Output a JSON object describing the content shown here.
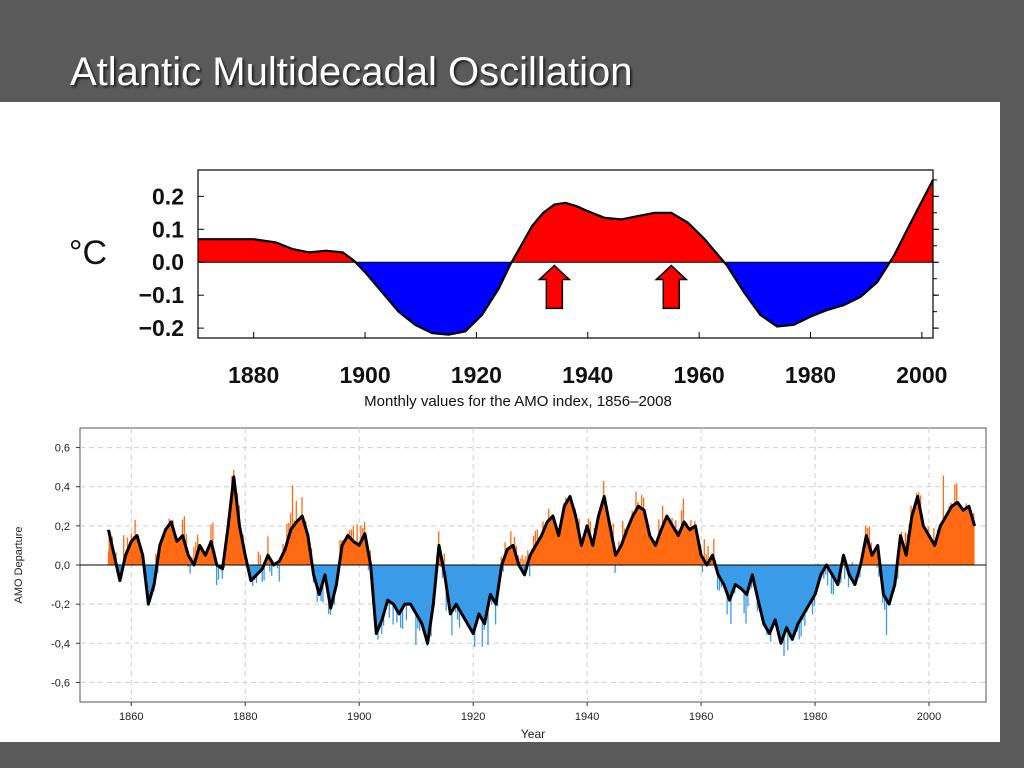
{
  "slide": {
    "title": "Atlantic Multidecadal Oscillation"
  },
  "colors": {
    "positive_top": "#ff0000",
    "negative_top": "#0000ff",
    "positive_bottom": "#ff6a13",
    "negative_bottom": "#3a9be8",
    "smooth_line": "#000000",
    "arrow_fill": "#ff0000"
  },
  "chart_data": [
    {
      "type": "area",
      "title": "",
      "ylabel": "°C",
      "xlim": [
        1870,
        2002
      ],
      "ylim": [
        -0.23,
        0.28
      ],
      "y_ticks": [
        0.2,
        0.1,
        0.0,
        -0.1,
        -0.2
      ],
      "y_tick_labels": [
        "0.2",
        "0.1",
        "0.0",
        "−0.1",
        "−0.2"
      ],
      "x_ticks": [
        1880,
        1900,
        1920,
        1940,
        1960,
        1980,
        2000
      ],
      "x_tick_labels": [
        "1880",
        "1900",
        "1920",
        "1940",
        "1960",
        "1980",
        "2000"
      ],
      "series": [
        {
          "x": [
            1870,
            1875,
            1880,
            1884,
            1887,
            1890,
            1893,
            1896,
            1898,
            1900,
            1903,
            1906,
            1909,
            1912,
            1915,
            1918,
            1921,
            1924,
            1926,
            1928,
            1930,
            1932,
            1934,
            1936,
            1938,
            1940,
            1943,
            1946,
            1949,
            1952,
            1955,
            1958,
            1961,
            1963,
            1965,
            1968,
            1971,
            1974,
            1977,
            1980,
            1983,
            1986,
            1989,
            1992,
            1995,
            1998,
            2002
          ],
          "y": [
            0.07,
            0.07,
            0.07,
            0.06,
            0.04,
            0.03,
            0.035,
            0.03,
            0.005,
            -0.03,
            -0.09,
            -0.15,
            -0.19,
            -0.215,
            -0.22,
            -0.21,
            -0.16,
            -0.08,
            -0.01,
            0.05,
            0.11,
            0.15,
            0.175,
            0.18,
            0.17,
            0.155,
            0.135,
            0.13,
            0.14,
            0.15,
            0.15,
            0.12,
            0.07,
            0.03,
            -0.01,
            -0.09,
            -0.16,
            -0.195,
            -0.19,
            -0.165,
            -0.145,
            -0.13,
            -0.105,
            -0.06,
            0.02,
            0.12,
            0.25
          ]
        }
      ],
      "annotations": [
        {
          "type": "arrow-up",
          "x": 1934,
          "y_from": -0.14,
          "y_to": -0.01
        },
        {
          "type": "arrow-up",
          "x": 1955,
          "y_from": -0.14,
          "y_to": -0.01
        }
      ],
      "caption": "Monthly values for the AMO index, 1856–2008"
    },
    {
      "type": "bar",
      "title": "",
      "xlabel": "Year",
      "ylabel": "AMO Departure",
      "xlim": [
        1851,
        2010
      ],
      "ylim": [
        -0.7,
        0.7
      ],
      "y_ticks": [
        0.6,
        0.4,
        0.2,
        0.0,
        -0.2,
        -0.4,
        -0.6
      ],
      "y_tick_labels": [
        "0,6",
        "0,4",
        "0,2",
        "0,0",
        "-0,2",
        "-0,4",
        "-0,6"
      ],
      "x_ticks": [
        1860,
        1880,
        1900,
        1920,
        1940,
        1960,
        1980,
        2000
      ],
      "x_tick_labels": [
        "1860",
        "1880",
        "1900",
        "1920",
        "1940",
        "1960",
        "1980",
        "2000"
      ],
      "grid": true,
      "bar_series": {
        "x_start": 1856,
        "x_end": 2008,
        "step": 0.333,
        "description_of_values": "approximate monthly/seasonal departures"
      },
      "smooth_series": {
        "name": "",
        "x": [
          1856,
          1857,
          1858,
          1859,
          1860,
          1861,
          1862,
          1863,
          1864,
          1865,
          1866,
          1867,
          1868,
          1869,
          1870,
          1871,
          1872,
          1873,
          1874,
          1875,
          1876,
          1877,
          1878,
          1879,
          1880,
          1881,
          1882,
          1883,
          1884,
          1885,
          1886,
          1887,
          1888,
          1889,
          1890,
          1891,
          1892,
          1893,
          1894,
          1895,
          1896,
          1897,
          1898,
          1899,
          1900,
          1901,
          1902,
          1903,
          1904,
          1905,
          1906,
          1907,
          1908,
          1909,
          1910,
          1911,
          1912,
          1913,
          1914,
          1915,
          1916,
          1917,
          1918,
          1919,
          1920,
          1921,
          1922,
          1923,
          1924,
          1925,
          1926,
          1927,
          1928,
          1929,
          1930,
          1931,
          1932,
          1933,
          1934,
          1935,
          1936,
          1937,
          1938,
          1939,
          1940,
          1941,
          1942,
          1943,
          1944,
          1945,
          1946,
          1947,
          1948,
          1949,
          1950,
          1951,
          1952,
          1953,
          1954,
          1955,
          1956,
          1957,
          1958,
          1959,
          1960,
          1961,
          1962,
          1963,
          1964,
          1965,
          1966,
          1967,
          1968,
          1969,
          1970,
          1971,
          1972,
          1973,
          1974,
          1975,
          1976,
          1977,
          1978,
          1979,
          1980,
          1981,
          1982,
          1983,
          1984,
          1985,
          1986,
          1987,
          1988,
          1989,
          1990,
          1991,
          1992,
          1993,
          1994,
          1995,
          1996,
          1997,
          1998,
          1999,
          2000,
          2001,
          2002,
          2003,
          2004,
          2005,
          2006,
          2007,
          2008
        ],
        "y": [
          0.18,
          0.05,
          -0.08,
          0.05,
          0.12,
          0.15,
          0.05,
          -0.2,
          -0.1,
          0.1,
          0.18,
          0.22,
          0.12,
          0.15,
          0.05,
          0.0,
          0.1,
          0.05,
          0.12,
          0.0,
          -0.02,
          0.2,
          0.45,
          0.2,
          0.05,
          -0.08,
          -0.05,
          -0.02,
          0.05,
          0.0,
          0.02,
          0.08,
          0.18,
          0.22,
          0.25,
          0.15,
          -0.05,
          -0.15,
          -0.05,
          -0.22,
          -0.1,
          0.1,
          0.15,
          0.12,
          0.1,
          0.16,
          0.0,
          -0.35,
          -0.28,
          -0.18,
          -0.2,
          -0.25,
          -0.2,
          -0.2,
          -0.25,
          -0.3,
          -0.4,
          -0.2,
          0.1,
          -0.05,
          -0.25,
          -0.2,
          -0.25,
          -0.3,
          -0.35,
          -0.25,
          -0.3,
          -0.15,
          -0.2,
          0.0,
          0.08,
          0.1,
          0.0,
          -0.05,
          0.05,
          0.1,
          0.15,
          0.22,
          0.25,
          0.15,
          0.3,
          0.35,
          0.25,
          0.1,
          0.2,
          0.1,
          0.25,
          0.35,
          0.2,
          0.05,
          0.1,
          0.18,
          0.25,
          0.3,
          0.28,
          0.15,
          0.1,
          0.18,
          0.25,
          0.2,
          0.15,
          0.22,
          0.18,
          0.2,
          0.05,
          0.0,
          0.05,
          -0.05,
          -0.1,
          -0.18,
          -0.1,
          -0.12,
          -0.15,
          -0.05,
          -0.18,
          -0.3,
          -0.35,
          -0.28,
          -0.4,
          -0.32,
          -0.38,
          -0.3,
          -0.25,
          -0.2,
          -0.15,
          -0.05,
          0.0,
          -0.05,
          -0.1,
          0.05,
          -0.05,
          -0.1,
          0.0,
          0.15,
          0.05,
          0.1,
          -0.15,
          -0.2,
          -0.1,
          0.15,
          0.05,
          0.25,
          0.35,
          0.2,
          0.15,
          0.1,
          0.2,
          0.25,
          0.3,
          0.32,
          0.28,
          0.3,
          0.2
        ]
      }
    }
  ]
}
